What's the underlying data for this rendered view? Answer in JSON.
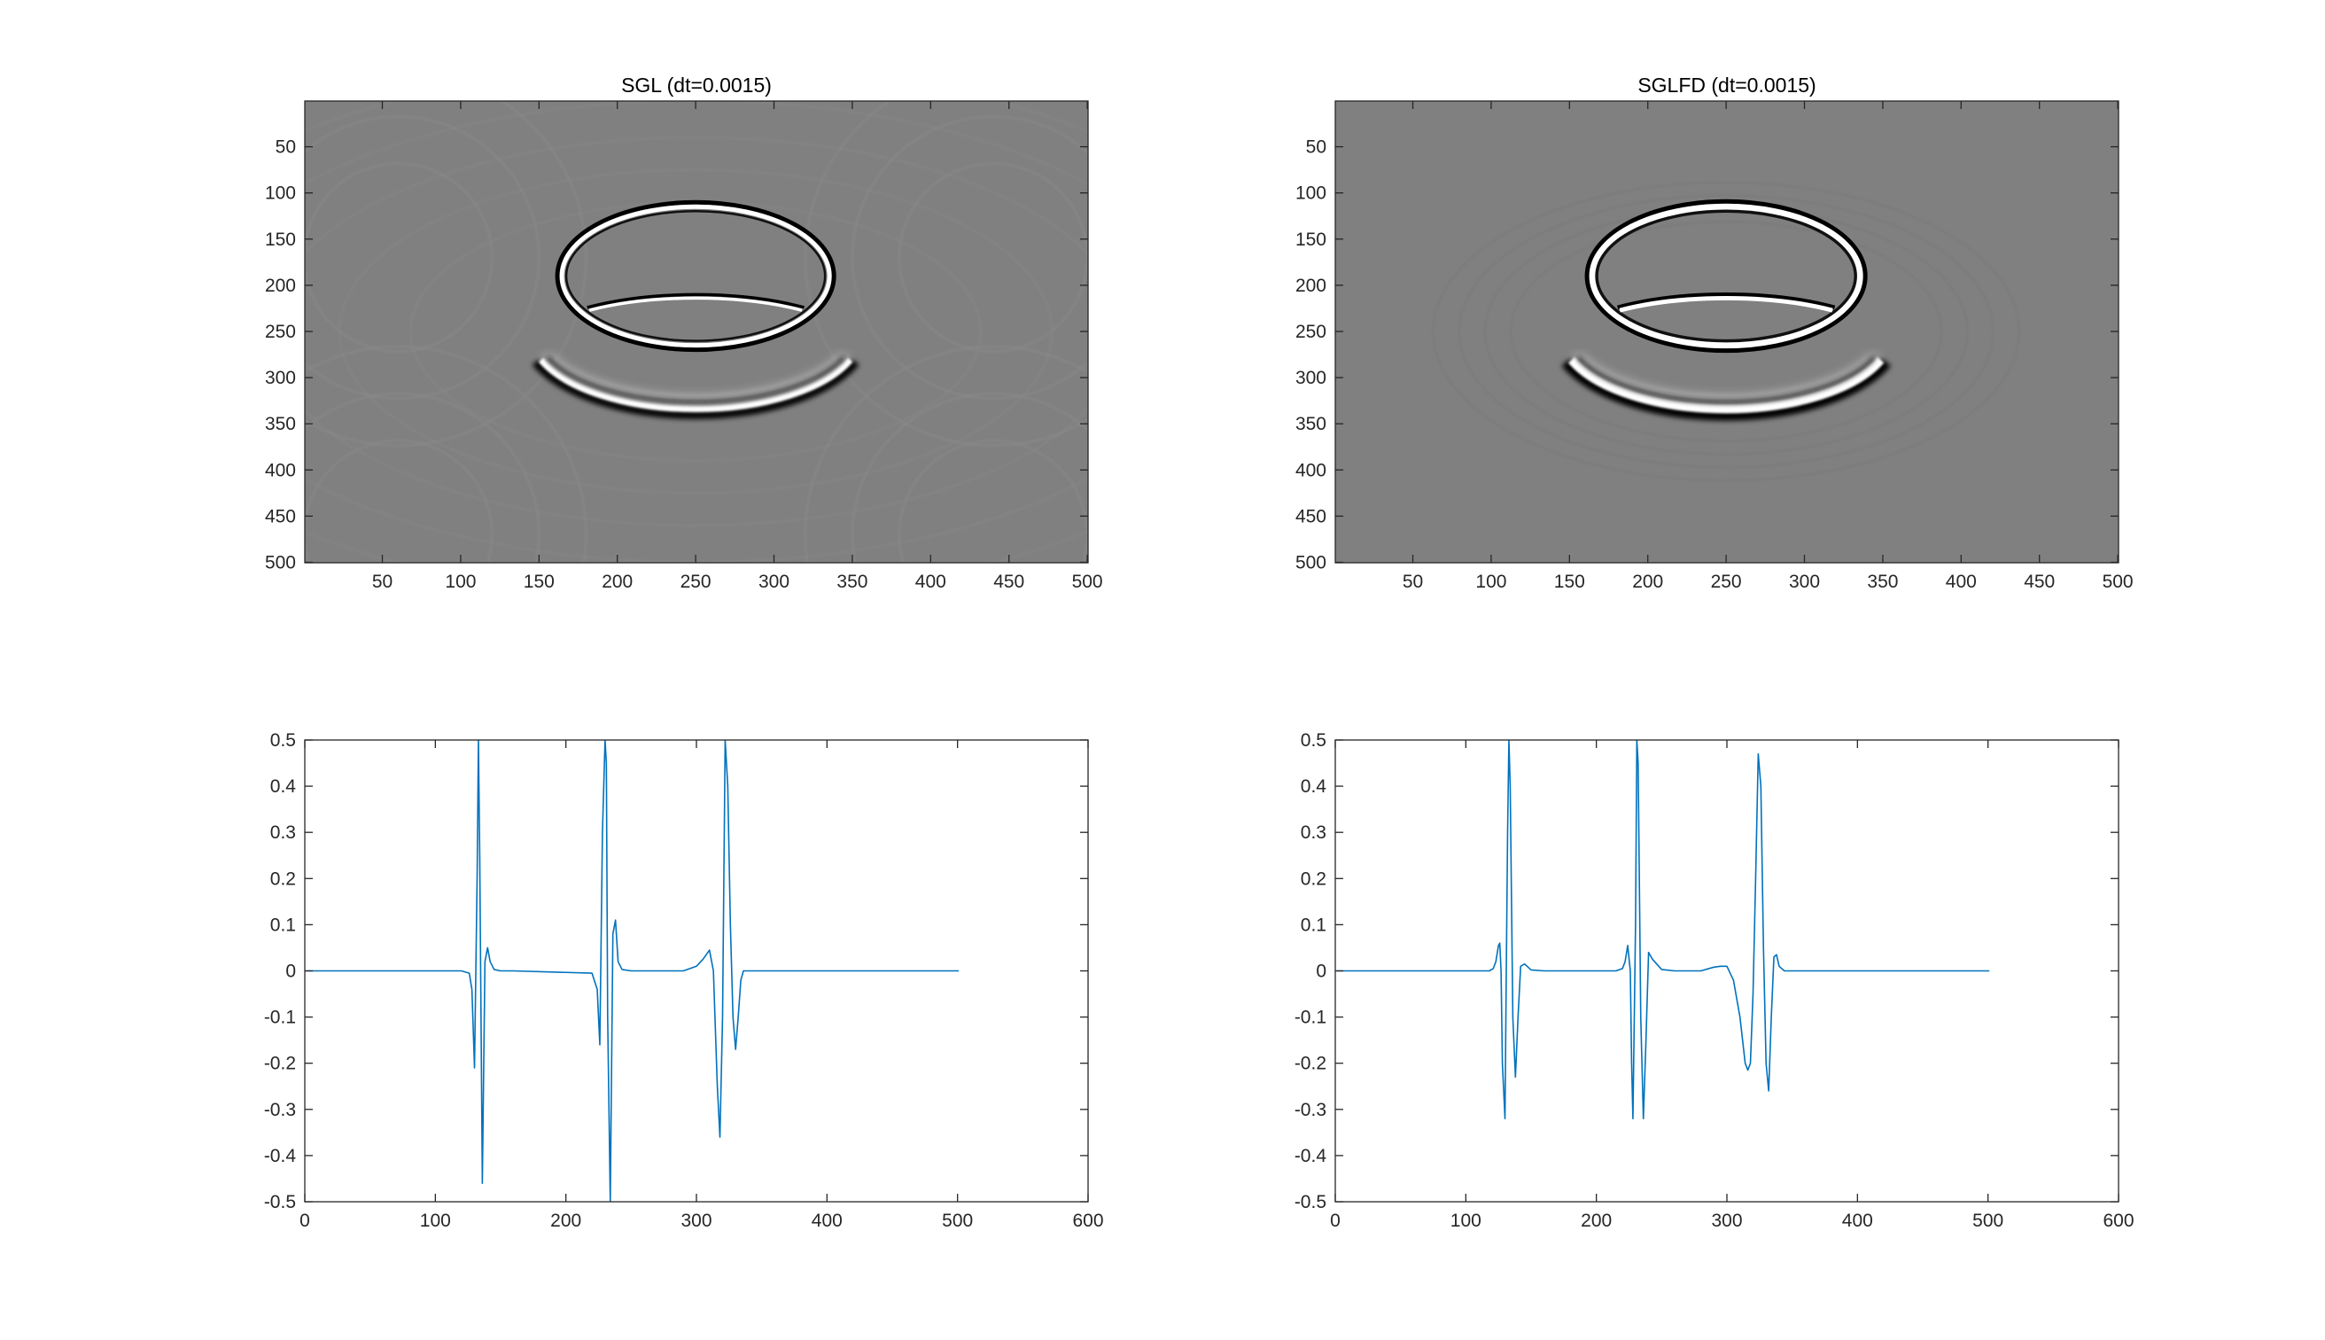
{
  "chart_data": [
    {
      "type": "heatmap",
      "title": "SGL (dt=0.0015)",
      "xlim": [
        0.5,
        500.5
      ],
      "ylim": [
        0.5,
        500.5
      ],
      "y_reversed": true,
      "colormap": "gray",
      "xticks": [
        50,
        100,
        150,
        200,
        250,
        300,
        350,
        400,
        450,
        500
      ],
      "yticks": [
        50,
        100,
        150,
        200,
        250,
        300,
        350,
        400,
        450,
        500
      ],
      "wavefronts": [
        {
          "kind": "upper-ellipse",
          "cx": 250,
          "cy": 190,
          "rx": 86,
          "ry": 76
        },
        {
          "kind": "inner-arc",
          "cx": 250,
          "cy": 275,
          "rx": 110,
          "ry": 62
        },
        {
          "kind": "lower-arc",
          "cx": 250,
          "cy": 250,
          "rx": 105,
          "ry": 82
        }
      ]
    },
    {
      "type": "heatmap",
      "title": "SGLFD (dt=0.0015)",
      "xlim": [
        0.5,
        500.5
      ],
      "ylim": [
        0.5,
        500.5
      ],
      "y_reversed": true,
      "colormap": "gray",
      "xticks": [
        50,
        100,
        150,
        200,
        250,
        300,
        350,
        400,
        450,
        500
      ],
      "yticks": [
        50,
        100,
        150,
        200,
        250,
        300,
        350,
        400,
        450,
        500
      ],
      "wavefronts": [
        {
          "kind": "upper-ellipse",
          "cx": 250,
          "cy": 190,
          "rx": 86,
          "ry": 76
        },
        {
          "kind": "inner-arc",
          "cx": 250,
          "cy": 275,
          "rx": 110,
          "ry": 62
        },
        {
          "kind": "lower-arc",
          "cx": 250,
          "cy": 250,
          "rx": 105,
          "ry": 82
        }
      ]
    },
    {
      "type": "line",
      "title": "",
      "xlim": [
        0,
        600
      ],
      "ylim": [
        -0.5,
        0.5
      ],
      "xticks": [
        0,
        100,
        200,
        300,
        400,
        500,
        600
      ],
      "yticks": [
        -0.5,
        -0.4,
        -0.3,
        -0.2,
        -0.1,
        0,
        0.1,
        0.2,
        0.3,
        0.4,
        0.5
      ],
      "ytick_labels": [
        "-0.5",
        "-0.4",
        "-0.3",
        "-0.2",
        "-0.1",
        "0",
        "0.1",
        "0.2",
        "0.3",
        "0.4",
        "0.5"
      ],
      "color": "#0072bd",
      "series": [
        {
          "x": [
            1,
            120,
            126,
            128,
            130,
            132,
            133,
            134,
            136,
            138,
            140,
            142,
            145,
            150,
            160,
            220,
            224,
            226,
            228,
            230,
            231,
            232,
            234,
            236,
            238,
            240,
            243,
            250,
            290,
            300,
            305,
            310,
            313,
            316,
            318,
            320,
            321,
            322,
            324,
            326,
            328,
            330,
            332,
            334,
            336,
            338,
            342,
            350,
            400,
            501
          ],
          "y": [
            0,
            0,
            -0.005,
            -0.04,
            -0.21,
            0.2,
            0.5,
            0.25,
            -0.46,
            0.02,
            0.05,
            0.02,
            0.003,
            0,
            0,
            -0.005,
            -0.04,
            -0.16,
            0.3,
            0.5,
            0.45,
            -0.1,
            -0.5,
            0.08,
            0.11,
            0.02,
            0.003,
            0,
            0,
            0.01,
            0.025,
            0.045,
            0,
            -0.25,
            -0.36,
            -0.1,
            0.2,
            0.5,
            0.4,
            0.1,
            -0.1,
            -0.17,
            -0.1,
            -0.02,
            0,
            0,
            0,
            0,
            0,
            0
          ]
        }
      ]
    },
    {
      "type": "line",
      "title": "",
      "xlim": [
        0,
        600
      ],
      "ylim": [
        -0.5,
        0.5
      ],
      "xticks": [
        0,
        100,
        200,
        300,
        400,
        500,
        600
      ],
      "yticks": [
        -0.5,
        -0.4,
        -0.3,
        -0.2,
        -0.1,
        0,
        0.1,
        0.2,
        0.3,
        0.4,
        0.5
      ],
      "ytick_labels": [
        "-0.5",
        "-0.4",
        "-0.3",
        "-0.2",
        "-0.1",
        "0",
        "0.1",
        "0.2",
        "0.3",
        "0.4",
        "0.5"
      ],
      "color": "#0072bd",
      "series": [
        {
          "x": [
            1,
            118,
            121,
            123,
            125,
            126,
            127,
            128,
            130,
            131,
            132,
            133,
            134,
            136,
            138,
            140,
            142,
            145,
            150,
            160,
            215,
            220,
            222,
            224,
            226,
            227,
            228,
            230,
            231,
            232,
            234,
            236,
            238,
            240,
            243,
            250,
            260,
            280,
            290,
            295,
            300,
            305,
            310,
            314,
            316,
            318,
            320,
            322,
            324,
            326,
            328,
            330,
            332,
            334,
            336,
            338,
            340,
            344,
            350,
            400,
            501
          ],
          "y": [
            0,
            0,
            0.005,
            0.02,
            0.055,
            0.06,
            0.0,
            -0.2,
            -0.32,
            0.0,
            0.3,
            0.5,
            0.4,
            -0.1,
            -0.23,
            -0.1,
            0.01,
            0.015,
            0.002,
            0,
            0,
            0.005,
            0.02,
            0.055,
            0.0,
            -0.2,
            -0.32,
            0.1,
            0.5,
            0.45,
            -0.1,
            -0.32,
            -0.15,
            0.04,
            0.025,
            0.003,
            0.0,
            0.0,
            0.008,
            0.01,
            0.01,
            -0.02,
            -0.1,
            -0.2,
            -0.215,
            -0.2,
            -0.05,
            0.2,
            0.47,
            0.4,
            0.05,
            -0.2,
            -0.26,
            -0.1,
            0.03,
            0.035,
            0.01,
            0.0,
            0,
            0,
            0
          ]
        }
      ]
    }
  ]
}
